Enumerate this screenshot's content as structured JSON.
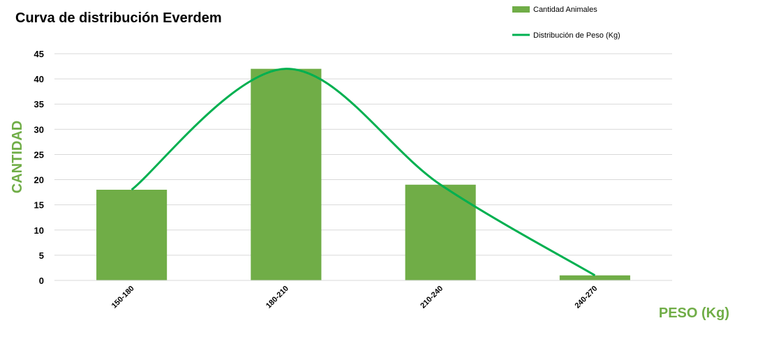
{
  "chart_data": {
    "type": "bar",
    "title": "Curva de distribución Everdem",
    "xlabel": "PESO (Kg)",
    "ylabel": "CANTIDAD",
    "categories": [
      "150-180",
      "180-210",
      "210-240",
      "240-270"
    ],
    "series": [
      {
        "name": "Cantidad Animales",
        "type": "bar",
        "values": [
          18,
          42,
          19,
          1
        ],
        "color": "#70ad47"
      },
      {
        "name": "Distribución de Peso (Kg)",
        "type": "line",
        "smooth": true,
        "values": [
          18,
          42,
          19,
          1
        ],
        "color": "#00b050"
      }
    ],
    "ylim": [
      0,
      45
    ],
    "yticks": [
      0,
      5,
      10,
      15,
      20,
      25,
      30,
      35,
      40,
      45
    ],
    "grid": true,
    "legend_position": "top-right"
  }
}
